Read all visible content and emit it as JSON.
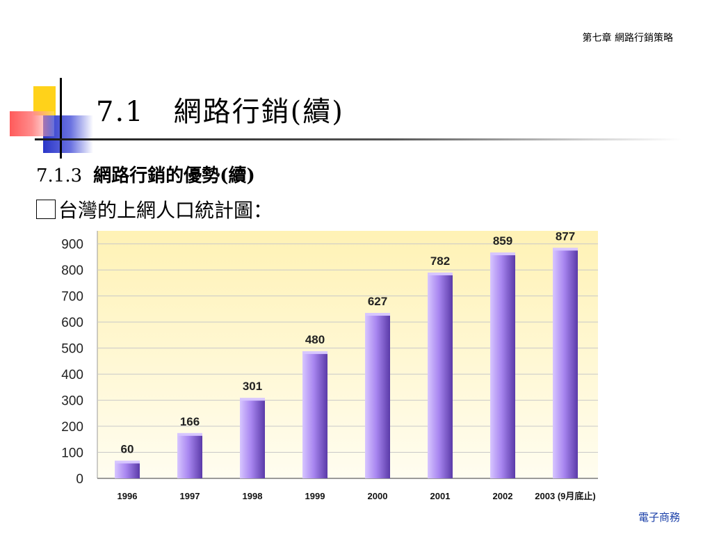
{
  "header": {
    "chapter": "第七章 網路行銷策略"
  },
  "title": {
    "main": "7.1　網路行銷(續)"
  },
  "section": {
    "number": "7.1.3",
    "heading": "網路行銷的優勢(續)"
  },
  "bullet": {
    "text": "台灣的上網人口統計圖："
  },
  "footer": {
    "label": "電子商務"
  },
  "colors": {
    "bar_main": "#a886f0",
    "bar_dark": "#5a3aa8",
    "bar_light": "#d7c6ff",
    "plot_bg_top": "#fff2b5",
    "plot_bg_bottom": "#fffdf0",
    "footer_text": "#1a3fa8"
  },
  "chart_data": {
    "type": "bar",
    "categories": [
      "1996",
      "1997",
      "1998",
      "1999",
      "2000",
      "2001",
      "2002",
      "2003"
    ],
    "last_category_suffix": "(9月底止)",
    "values": [
      60,
      166,
      301,
      480,
      627,
      782,
      859,
      877
    ],
    "data_labels": [
      "60",
      "166",
      "301",
      "480",
      "627",
      "782",
      "859",
      "877"
    ],
    "y_ticks": [
      0,
      100,
      200,
      300,
      400,
      500,
      600,
      700,
      800,
      900
    ],
    "ylim": [
      0,
      950
    ],
    "grid": true,
    "legend": "none"
  }
}
